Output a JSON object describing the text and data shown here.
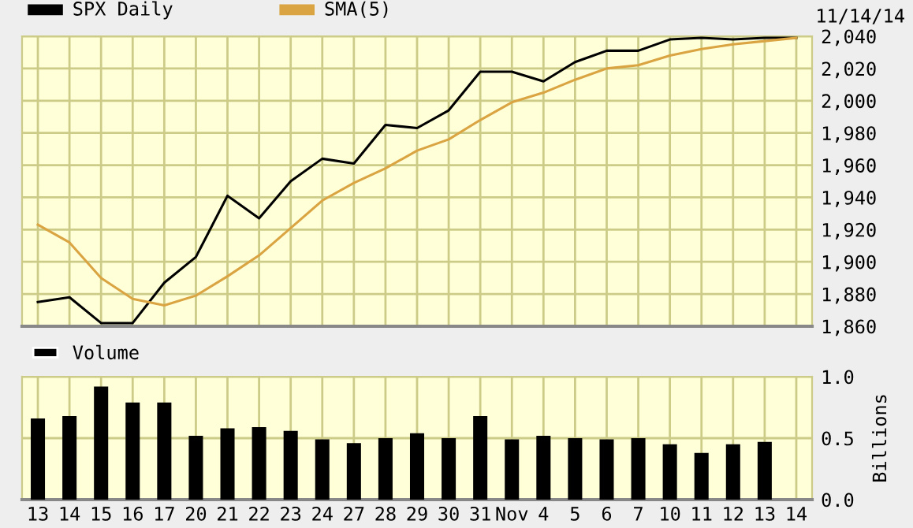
{
  "chart_data": [
    {
      "type": "line",
      "categories": [
        null,
        null,
        null,
        null,
        null,
        null,
        null,
        null,
        null,
        null,
        null,
        null,
        null,
        null,
        null,
        null,
        null,
        null,
        null,
        null,
        null,
        null,
        null,
        null,
        null
      ],
      "series": [
        {
          "name": "SPX Daily",
          "color": "#000000",
          "values": [
            1875,
            1878,
            1862,
            1862,
            1887,
            1903,
            1941,
            1927,
            1950,
            1964,
            1961,
            1985,
            1983,
            1994,
            2018,
            2018,
            2012,
            2024,
            2031,
            2031,
            2038,
            2039,
            2038,
            2039,
            2039
          ]
        },
        {
          "name": "SMA(5)",
          "color": "#d9a441",
          "values": [
            1923,
            1912,
            1890,
            1877,
            1873,
            1879,
            1891,
            1904,
            1921,
            1938,
            1949,
            1958,
            1969,
            1976,
            1988,
            1999,
            2005,
            2013,
            2020,
            2022,
            2028,
            2032,
            2035,
            2037,
            2039
          ]
        }
      ],
      "ylim": [
        1860,
        2040
      ],
      "yticks": [
        {
          "value": 1860,
          "label": "1,860"
        },
        {
          "value": 1880,
          "label": "1,880"
        },
        {
          "value": 1900,
          "label": "1,900"
        },
        {
          "value": 1920,
          "label": "1,920"
        },
        {
          "value": 1940,
          "label": "1,940"
        },
        {
          "value": 1960,
          "label": "1,960"
        },
        {
          "value": 1980,
          "label": "1,980"
        },
        {
          "value": 2000,
          "label": "2,000"
        },
        {
          "value": 2020,
          "label": "2,020"
        },
        {
          "value": 2040,
          "label": "2,040"
        }
      ],
      "grid": true,
      "legend": "top left",
      "tick_labels": "y",
      "annotations": [
        "11/14/14"
      ]
    },
    {
      "type": "bar",
      "categories": [
        "13",
        "14",
        "15",
        "16",
        "17",
        "20",
        "21",
        "22",
        "23",
        "24",
        "27",
        "28",
        "29",
        "30",
        "31",
        "Nov",
        "4",
        "5",
        "6",
        "7",
        "10",
        "11",
        "12",
        "13",
        "14"
      ],
      "series": [
        {
          "name": "Volume",
          "color": "#000000",
          "values": [
            0.66,
            0.68,
            0.92,
            0.79,
            0.79,
            0.52,
            0.58,
            0.59,
            0.56,
            0.49,
            0.46,
            0.5,
            0.54,
            0.5,
            0.68,
            0.49,
            0.52,
            0.5,
            0.49,
            0.5,
            0.45,
            0.38,
            0.45,
            0.47,
            null
          ]
        }
      ],
      "ylim": [
        0,
        1
      ],
      "yticks": [
        {
          "value": 0,
          "label": "0.0"
        },
        {
          "value": 0.5,
          "label": "0.5"
        },
        {
          "value": 1,
          "label": "1.0"
        }
      ],
      "ylabel": "Billions",
      "grid": true,
      "legend": "top left"
    }
  ]
}
